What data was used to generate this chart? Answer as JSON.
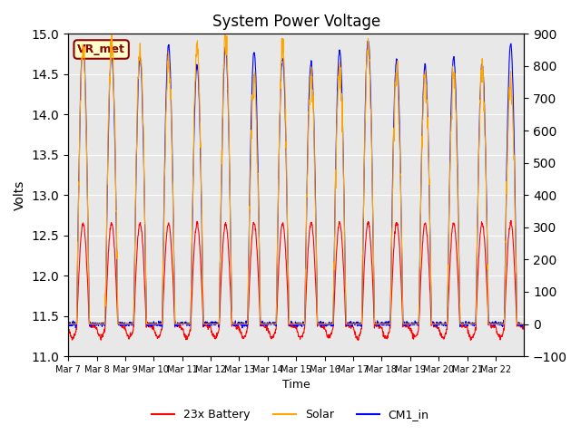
{
  "title": "System Power Voltage",
  "xlabel": "Time",
  "ylabel_left": "Volts",
  "ylim_left": [
    11.0,
    15.0
  ],
  "ylim_right": [
    -100,
    900
  ],
  "yticks_left": [
    11.0,
    11.5,
    12.0,
    12.5,
    13.0,
    13.5,
    14.0,
    14.5,
    15.0
  ],
  "yticks_right": [
    -100,
    0,
    100,
    200,
    300,
    400,
    500,
    600,
    700,
    800,
    900
  ],
  "x_labels": [
    "Mar 7",
    "Mar 8",
    "Mar 9",
    "Mar 10",
    "Mar 11",
    "Mar 12",
    "Mar 13",
    "Mar 14",
    "Mar 15",
    "Mar 16",
    "Mar 17",
    "Mar 18",
    "Mar 19",
    "Mar 20",
    "Mar 21",
    "Mar 22"
  ],
  "n_days": 16,
  "bg_color": "#e8e8e8",
  "annotation_text": "VR_met",
  "annotation_fg": "#8b0000",
  "annotation_bg": "#ffffcc",
  "legend_labels": [
    "23x Battery",
    "Solar",
    "CM1_in"
  ],
  "legend_colors": [
    "red",
    "orange",
    "blue"
  ],
  "battery_base": 11.35,
  "battery_peak": 12.65,
  "cm1_base": 11.4,
  "cm1_peak": 14.75,
  "solar_peak": 800,
  "sun_rise": 0.3,
  "sun_set": 0.75,
  "pts_per_day": 96,
  "seed": 42
}
